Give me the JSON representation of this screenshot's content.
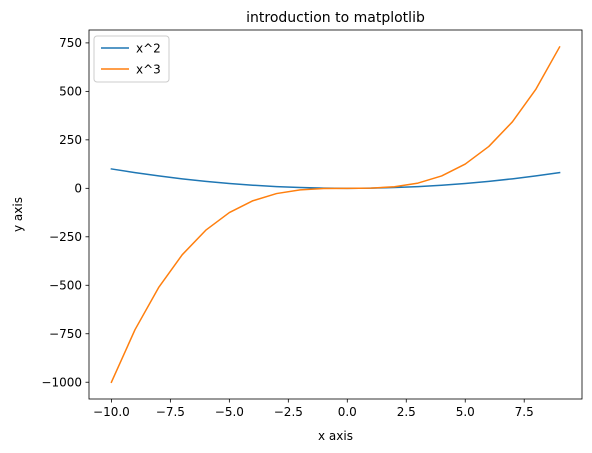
{
  "chart_data": {
    "type": "line",
    "title": "introduction to matplotlib",
    "xlabel": "x axis",
    "ylabel": "y axis",
    "xlim": [
      -10.95,
      9.95
    ],
    "ylim": [
      -1086.5,
      816.5
    ],
    "grid": false,
    "legend_position": "top-left",
    "x_ticks": [
      -10.0,
      -7.5,
      -5.0,
      -2.5,
      0.0,
      2.5,
      5.0,
      7.5
    ],
    "x_tick_labels": [
      "−10.0",
      "−7.5",
      "−5.0",
      "−2.5",
      "0.0",
      "2.5",
      "5.0",
      "7.5"
    ],
    "y_ticks": [
      -1000,
      -750,
      -500,
      -250,
      0,
      250,
      500,
      750
    ],
    "y_tick_labels": [
      "−1000",
      "−750",
      "−500",
      "−250",
      "0",
      "250",
      "500",
      "750"
    ],
    "x": [
      -10,
      -9,
      -8,
      -7,
      -6,
      -5,
      -4,
      -3,
      -2,
      -1,
      0,
      1,
      2,
      3,
      4,
      5,
      6,
      7,
      8,
      9
    ],
    "series": [
      {
        "name": "x^2",
        "color": "#1f77b4",
        "values": [
          100,
          81,
          64,
          49,
          36,
          25,
          16,
          9,
          4,
          1,
          0,
          1,
          4,
          9,
          16,
          25,
          36,
          49,
          64,
          81
        ]
      },
      {
        "name": "x^3",
        "color": "#ff7f0e",
        "values": [
          -1000,
          -729,
          -512,
          -343,
          -216,
          -125,
          -64,
          -27,
          -8,
          -1,
          0,
          1,
          8,
          27,
          64,
          125,
          216,
          343,
          512,
          729
        ]
      }
    ]
  }
}
